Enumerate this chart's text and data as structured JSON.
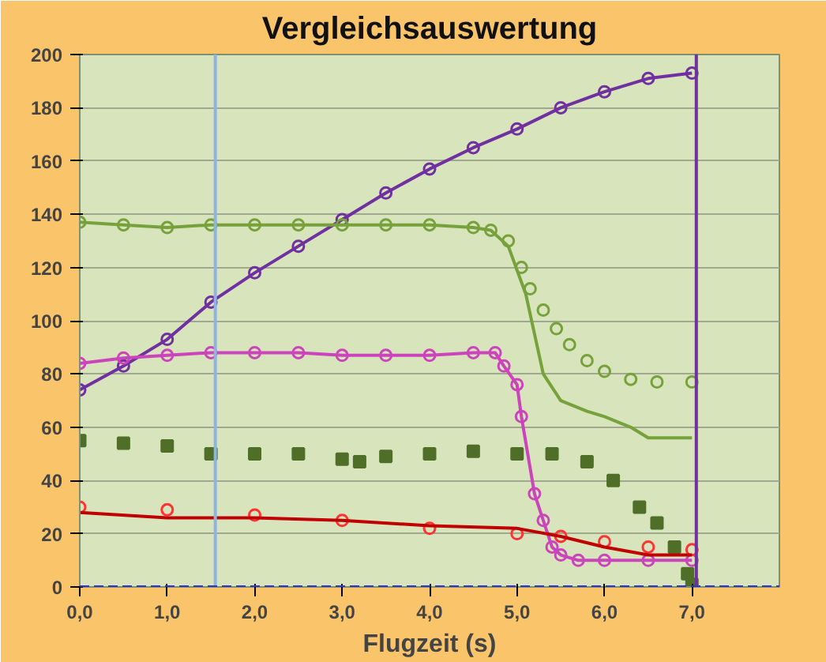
{
  "chart_data": {
    "type": "line",
    "title": "Vergleichsauswertung",
    "xlabel": "Flugzeit (s)",
    "xlim": [
      0,
      8
    ],
    "ylim": [
      0,
      200
    ],
    "xticks": [
      {
        "value": 0,
        "label": "0,0"
      },
      {
        "value": 1,
        "label": "1,0"
      },
      {
        "value": 2,
        "label": "2,0"
      },
      {
        "value": 3,
        "label": "3,0"
      },
      {
        "value": 4,
        "label": "4,0"
      },
      {
        "value": 5,
        "label": "5,0"
      },
      {
        "value": 6,
        "label": "6,0"
      },
      {
        "value": 7,
        "label": "7,0"
      }
    ],
    "yticks": [
      0,
      20,
      40,
      60,
      80,
      100,
      120,
      140,
      160,
      180,
      200
    ],
    "grid": "y",
    "series": [
      {
        "marker": "circle",
        "color": "#7030a0",
        "x": [
          0,
          0.5,
          1,
          1.5,
          2,
          2.5,
          3,
          3.5,
          4,
          4.5,
          5,
          5.5,
          6,
          6.5,
          7
        ],
        "values": [
          74,
          83,
          93,
          107,
          118,
          128,
          138,
          148,
          157,
          165,
          172,
          180,
          186,
          191,
          193
        ]
      },
      {
        "type": "scatter",
        "marker": "circle",
        "color": "#77a13a",
        "x": [
          0,
          0.5,
          1,
          1.5,
          2,
          2.5,
          3,
          3.5,
          4,
          4.5,
          4.7,
          4.9,
          5.05,
          5.15,
          5.3,
          5.45,
          5.6,
          5.8,
          6.0,
          6.3,
          6.6,
          7.0
        ],
        "values": [
          137,
          136,
          135,
          136,
          136,
          136,
          136,
          136,
          136,
          135,
          134,
          130,
          120,
          112,
          104,
          97,
          91,
          85,
          81,
          78,
          77,
          77
        ]
      },
      {
        "marker": "none",
        "color": "#77a13a",
        "x": [
          0,
          0.5,
          1,
          1.5,
          2,
          2.5,
          3,
          3.5,
          4,
          4.5,
          4.7,
          4.9,
          5.1,
          5.2,
          5.3,
          5.5,
          5.8,
          6.0,
          6.3,
          6.5,
          7.0
        ],
        "values": [
          137,
          136,
          135,
          136,
          136,
          136,
          136,
          136,
          136,
          135,
          134,
          128,
          110,
          95,
          80,
          70,
          66,
          64,
          60,
          56,
          56
        ]
      },
      {
        "marker": "circle",
        "color": "#cc44bb",
        "x": [
          0,
          0.5,
          1,
          1.5,
          2,
          2.5,
          3,
          3.5,
          4,
          4.5,
          4.75,
          4.85,
          5.0,
          5.05,
          5.2,
          5.3,
          5.4,
          5.5,
          5.7,
          6.0,
          6.5,
          7.0
        ],
        "values": [
          84,
          86,
          87,
          88,
          88,
          88,
          87,
          87,
          87,
          88,
          88,
          83,
          76,
          64,
          35,
          25,
          15,
          12,
          10,
          10,
          10,
          10
        ]
      },
      {
        "type": "scatter",
        "marker": "square",
        "color": "#4f6f28",
        "x": [
          0,
          0.5,
          1,
          1.5,
          2,
          2.5,
          3,
          3.2,
          3.5,
          4,
          4.5,
          5,
          5.4,
          5.8,
          6.1,
          6.4,
          6.6,
          6.8,
          6.95,
          7.0
        ],
        "values": [
          55,
          54,
          53,
          50,
          50,
          50,
          48,
          47,
          49,
          50,
          51,
          50,
          50,
          47,
          40,
          30,
          24,
          15,
          5,
          1
        ]
      },
      {
        "type": "scatter",
        "marker": "circle",
        "color": "#ff3333",
        "x": [
          0,
          1,
          2,
          3,
          4,
          5,
          5.5,
          6,
          6.5,
          7
        ],
        "values": [
          30,
          29,
          27,
          25,
          22,
          20,
          19,
          17,
          15,
          14
        ]
      },
      {
        "marker": "none",
        "color": "#c00000",
        "x": [
          0,
          1,
          2,
          3,
          4,
          5,
          5.5,
          6,
          6.5,
          7
        ],
        "values": [
          28,
          26,
          26,
          25,
          23,
          22,
          19,
          15,
          12,
          12
        ]
      }
    ],
    "ref_lines": [
      {
        "axis": "x",
        "value": 1.55,
        "color": "#8db4e2"
      },
      {
        "axis": "x",
        "value": 7.05,
        "color": "#7030a0"
      },
      {
        "axis": "y",
        "value": 0,
        "color": "#3333cc",
        "line_style": "dashed"
      }
    ]
  }
}
